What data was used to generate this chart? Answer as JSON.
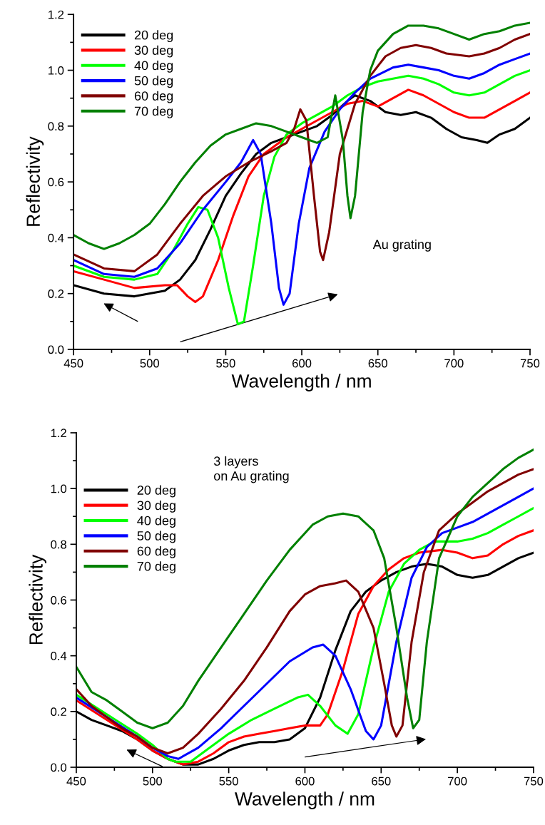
{
  "chart_data": [
    {
      "type": "line",
      "xlabel": "Wavelength / nm",
      "ylabel": "Reflectivity",
      "annotations": [
        "Au grating"
      ],
      "xlim": [
        450,
        750
      ],
      "xticks": [
        450,
        500,
        550,
        600,
        650,
        700,
        750
      ],
      "ylim": [
        0,
        1.2
      ],
      "yticks": [
        {
          "value": 0,
          "label": "0.0"
        },
        {
          "value": 0.2,
          "label": "0.2"
        },
        {
          "value": 0.4,
          "label": "0.4"
        },
        {
          "value": 0.6,
          "label": "0.6"
        },
        {
          "value": 0.8,
          "label": "0.8"
        },
        {
          "value": 1.0,
          "label": "1.0"
        },
        {
          "value": 1.2,
          "label": "1.2"
        }
      ],
      "legend": "top left",
      "grid": false,
      "series": [
        {
          "name": "20 deg",
          "color": "#000000",
          "x": [
            450,
            470,
            490,
            510,
            520,
            530,
            540,
            550,
            560,
            570,
            580,
            590,
            600,
            610,
            620,
            630,
            635,
            645,
            655,
            665,
            675,
            685,
            695,
            705,
            715,
            722,
            730,
            740,
            750
          ],
          "values": [
            0.23,
            0.2,
            0.19,
            0.21,
            0.25,
            0.32,
            0.43,
            0.55,
            0.63,
            0.7,
            0.74,
            0.76,
            0.78,
            0.8,
            0.84,
            0.89,
            0.91,
            0.89,
            0.85,
            0.84,
            0.85,
            0.83,
            0.79,
            0.76,
            0.75,
            0.74,
            0.77,
            0.79,
            0.83
          ]
        },
        {
          "name": "30 deg",
          "color": "#ff0000",
          "x": [
            450,
            470,
            490,
            510,
            518,
            525,
            530,
            535,
            545,
            555,
            565,
            575,
            590,
            600,
            610,
            620,
            630,
            640,
            650,
            660,
            670,
            680,
            690,
            700,
            710,
            720,
            730,
            740,
            750
          ],
          "values": [
            0.28,
            0.25,
            0.22,
            0.23,
            0.23,
            0.19,
            0.17,
            0.19,
            0.32,
            0.48,
            0.62,
            0.7,
            0.76,
            0.79,
            0.82,
            0.85,
            0.88,
            0.89,
            0.87,
            0.9,
            0.93,
            0.91,
            0.88,
            0.85,
            0.83,
            0.83,
            0.86,
            0.89,
            0.92
          ]
        },
        {
          "name": "40 deg",
          "color": "#00ff00",
          "x": [
            450,
            470,
            490,
            505,
            515,
            525,
            532,
            538,
            545,
            552,
            558,
            562,
            568,
            575,
            582,
            590,
            600,
            610,
            620,
            630,
            640,
            650,
            660,
            670,
            680,
            690,
            700,
            710,
            720,
            730,
            740,
            750
          ],
          "values": [
            0.3,
            0.26,
            0.25,
            0.27,
            0.35,
            0.45,
            0.51,
            0.5,
            0.4,
            0.22,
            0.09,
            0.1,
            0.3,
            0.55,
            0.69,
            0.77,
            0.81,
            0.84,
            0.87,
            0.91,
            0.94,
            0.96,
            0.97,
            0.98,
            0.97,
            0.95,
            0.92,
            0.91,
            0.92,
            0.95,
            0.98,
            1.0
          ]
        },
        {
          "name": "50 deg",
          "color": "#0000ff",
          "x": [
            450,
            470,
            490,
            505,
            520,
            535,
            550,
            560,
            565,
            568,
            573,
            580,
            585,
            588,
            592,
            598,
            605,
            615,
            625,
            635,
            645,
            660,
            670,
            680,
            690,
            700,
            710,
            720,
            730,
            740,
            750
          ],
          "values": [
            0.32,
            0.27,
            0.26,
            0.29,
            0.38,
            0.5,
            0.6,
            0.67,
            0.72,
            0.75,
            0.7,
            0.45,
            0.22,
            0.16,
            0.2,
            0.45,
            0.65,
            0.78,
            0.86,
            0.92,
            0.97,
            1.01,
            1.02,
            1.01,
            1.0,
            0.98,
            0.97,
            0.99,
            1.02,
            1.04,
            1.06
          ]
        },
        {
          "name": "60 deg",
          "color": "#800000",
          "x": [
            450,
            470,
            490,
            505,
            520,
            535,
            550,
            565,
            580,
            590,
            595,
            599,
            603,
            608,
            612,
            614,
            618,
            625,
            635,
            645,
            655,
            665,
            675,
            685,
            695,
            710,
            720,
            730,
            740,
            750
          ],
          "values": [
            0.34,
            0.29,
            0.28,
            0.34,
            0.45,
            0.55,
            0.62,
            0.67,
            0.71,
            0.74,
            0.79,
            0.86,
            0.82,
            0.55,
            0.35,
            0.32,
            0.42,
            0.7,
            0.88,
            0.98,
            1.05,
            1.08,
            1.09,
            1.08,
            1.06,
            1.05,
            1.06,
            1.08,
            1.11,
            1.13
          ]
        },
        {
          "name": "70 deg",
          "color": "#008000",
          "x": [
            450,
            460,
            470,
            480,
            490,
            500,
            510,
            520,
            530,
            540,
            550,
            560,
            570,
            580,
            590,
            600,
            610,
            617,
            622,
            627,
            630,
            632,
            635,
            640,
            645,
            650,
            660,
            670,
            680,
            690,
            700,
            710,
            720,
            730,
            740,
            750
          ],
          "values": [
            0.41,
            0.38,
            0.36,
            0.38,
            0.41,
            0.45,
            0.52,
            0.6,
            0.67,
            0.73,
            0.77,
            0.79,
            0.81,
            0.8,
            0.78,
            0.76,
            0.74,
            0.76,
            0.91,
            0.75,
            0.55,
            0.47,
            0.55,
            0.85,
            1.0,
            1.07,
            1.13,
            1.16,
            1.16,
            1.15,
            1.13,
            1.11,
            1.13,
            1.14,
            1.16,
            1.17
          ]
        }
      ]
    },
    {
      "type": "line",
      "xlabel": "Wavelength / nm",
      "ylabel": "Reflectivity",
      "annotations": [
        "3 layers\non Au grating"
      ],
      "xlim": [
        450,
        750
      ],
      "xticks": [
        450,
        500,
        550,
        600,
        650,
        700,
        750
      ],
      "ylim": [
        0,
        1.2
      ],
      "yticks": [
        {
          "value": 0,
          "label": "0.0"
        },
        {
          "value": 0.2,
          "label": "0.2"
        },
        {
          "value": 0.4,
          "label": "0.4"
        },
        {
          "value": 0.6,
          "label": "0.6"
        },
        {
          "value": 0.8,
          "label": "0.8"
        },
        {
          "value": 1.0,
          "label": "1.0"
        },
        {
          "value": 1.2,
          "label": "1.2"
        }
      ],
      "legend": "top left",
      "grid": false,
      "series": [
        {
          "name": "20 deg",
          "color": "#000000",
          "x": [
            450,
            460,
            470,
            480,
            490,
            500,
            510,
            520,
            530,
            540,
            550,
            560,
            570,
            580,
            590,
            600,
            610,
            620,
            630,
            640,
            650,
            660,
            670,
            680,
            690,
            700,
            710,
            720,
            730,
            740,
            750
          ],
          "values": [
            0.2,
            0.17,
            0.15,
            0.13,
            0.1,
            0.06,
            0.03,
            0.01,
            0.01,
            0.03,
            0.06,
            0.08,
            0.09,
            0.09,
            0.1,
            0.14,
            0.25,
            0.42,
            0.56,
            0.63,
            0.67,
            0.7,
            0.72,
            0.73,
            0.72,
            0.69,
            0.68,
            0.69,
            0.72,
            0.75,
            0.77
          ]
        },
        {
          "name": "30 deg",
          "color": "#ff0000",
          "x": [
            450,
            470,
            490,
            500,
            510,
            520,
            530,
            540,
            550,
            560,
            570,
            580,
            590,
            600,
            610,
            615,
            625,
            635,
            645,
            655,
            665,
            675,
            690,
            700,
            710,
            720,
            730,
            740,
            750
          ],
          "values": [
            0.24,
            0.17,
            0.1,
            0.06,
            0.03,
            0.01,
            0.02,
            0.05,
            0.09,
            0.11,
            0.12,
            0.13,
            0.14,
            0.15,
            0.15,
            0.19,
            0.35,
            0.55,
            0.65,
            0.71,
            0.75,
            0.77,
            0.78,
            0.77,
            0.75,
            0.76,
            0.8,
            0.83,
            0.85
          ]
        },
        {
          "name": "40 deg",
          "color": "#00ff00",
          "x": [
            450,
            470,
            490,
            500,
            510,
            515,
            525,
            535,
            550,
            565,
            580,
            595,
            602,
            610,
            620,
            628,
            635,
            645,
            655,
            665,
            675,
            685,
            700,
            710,
            720,
            730,
            740,
            750
          ],
          "values": [
            0.26,
            0.19,
            0.12,
            0.08,
            0.03,
            0.02,
            0.02,
            0.06,
            0.12,
            0.17,
            0.21,
            0.25,
            0.26,
            0.22,
            0.15,
            0.12,
            0.19,
            0.43,
            0.63,
            0.73,
            0.78,
            0.81,
            0.81,
            0.82,
            0.84,
            0.87,
            0.9,
            0.93
          ]
        },
        {
          "name": "50 deg",
          "color": "#0000ff",
          "x": [
            450,
            470,
            490,
            500,
            510,
            517,
            530,
            545,
            560,
            575,
            590,
            605,
            612,
            620,
            630,
            640,
            645,
            650,
            660,
            670,
            680,
            690,
            700,
            710,
            720,
            730,
            740,
            750
          ],
          "values": [
            0.25,
            0.18,
            0.11,
            0.07,
            0.04,
            0.03,
            0.07,
            0.14,
            0.22,
            0.3,
            0.38,
            0.43,
            0.44,
            0.4,
            0.28,
            0.13,
            0.1,
            0.15,
            0.45,
            0.68,
            0.79,
            0.84,
            0.86,
            0.88,
            0.91,
            0.94,
            0.97,
            1.0
          ]
        },
        {
          "name": "60 deg",
          "color": "#800000",
          "x": [
            450,
            460,
            470,
            480,
            490,
            500,
            510,
            520,
            530,
            545,
            560,
            575,
            590,
            600,
            610,
            620,
            627,
            635,
            645,
            652,
            657,
            660,
            664,
            670,
            678,
            688,
            700,
            710,
            720,
            730,
            740,
            750
          ],
          "values": [
            0.28,
            0.22,
            0.18,
            0.14,
            0.11,
            0.07,
            0.05,
            0.07,
            0.12,
            0.21,
            0.31,
            0.43,
            0.56,
            0.62,
            0.65,
            0.66,
            0.67,
            0.63,
            0.5,
            0.3,
            0.15,
            0.11,
            0.15,
            0.45,
            0.7,
            0.85,
            0.91,
            0.95,
            0.99,
            1.02,
            1.05,
            1.07
          ]
        },
        {
          "name": "70 deg",
          "color": "#008000",
          "x": [
            450,
            460,
            470,
            480,
            490,
            500,
            510,
            520,
            530,
            545,
            560,
            575,
            590,
            605,
            615,
            625,
            635,
            645,
            652,
            660,
            667,
            671,
            675,
            680,
            688,
            700,
            710,
            720,
            730,
            740,
            750
          ],
          "values": [
            0.36,
            0.27,
            0.24,
            0.2,
            0.16,
            0.14,
            0.16,
            0.22,
            0.31,
            0.43,
            0.55,
            0.67,
            0.78,
            0.87,
            0.9,
            0.91,
            0.9,
            0.85,
            0.75,
            0.5,
            0.25,
            0.14,
            0.17,
            0.45,
            0.75,
            0.9,
            0.97,
            1.02,
            1.07,
            1.11,
            1.14
          ]
        }
      ]
    }
  ]
}
